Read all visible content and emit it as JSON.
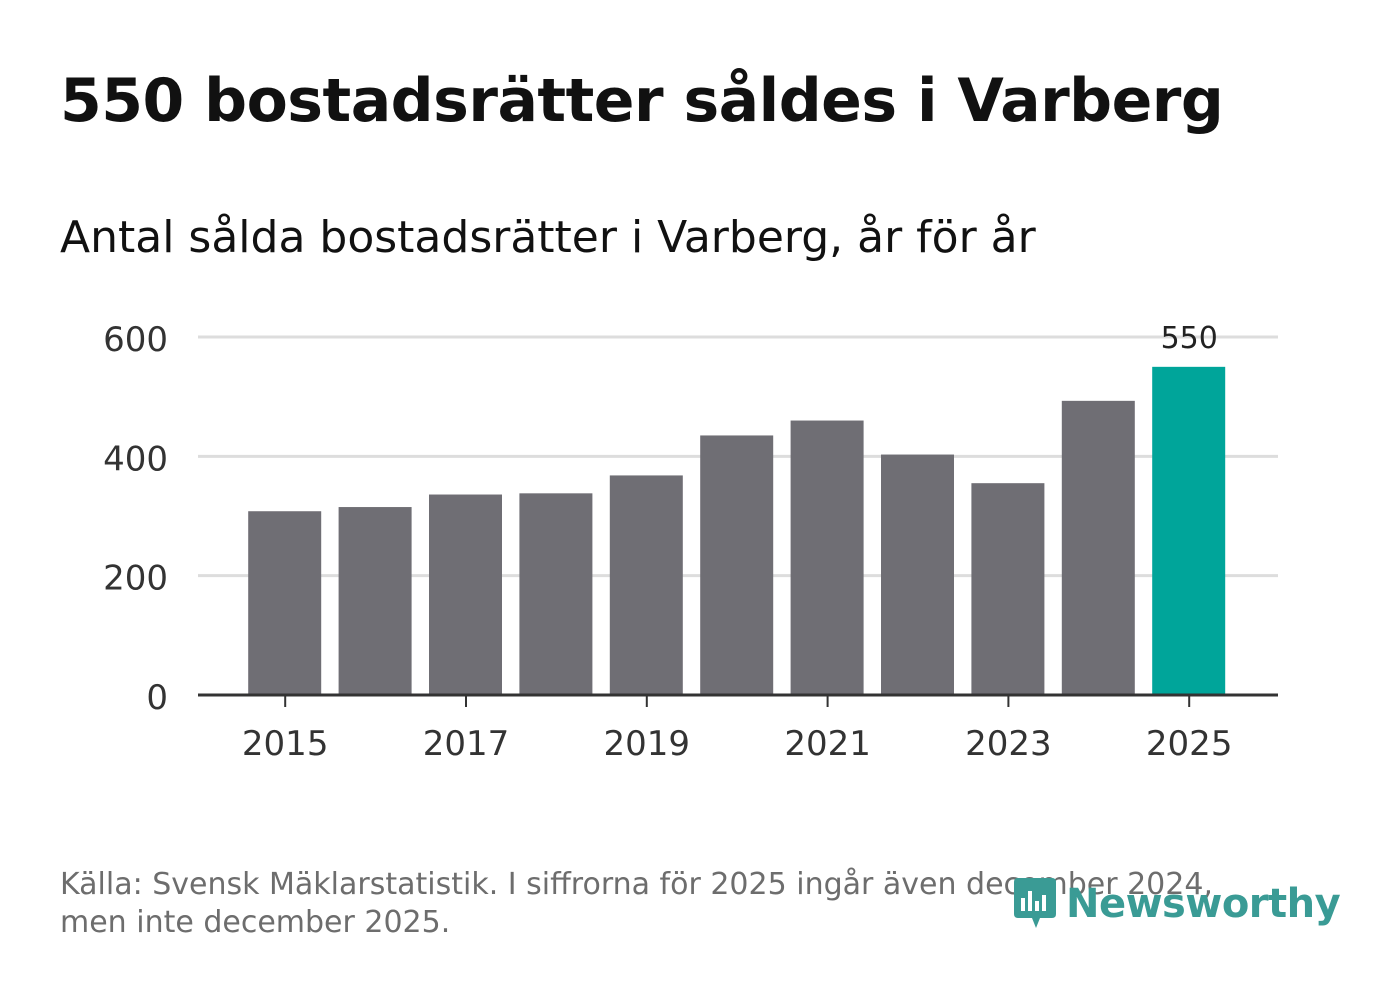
{
  "title": "550 bostadsrätter såldes i Varberg",
  "subtitle": "Antal sålda bostadsrätter i Varberg, år för år",
  "source": "Källa: Svensk Mäklarstatistik. I siffrorna för 2025 ingår även december 2024, men inte december 2025.",
  "logo": {
    "text": "Newsworthy",
    "color": "#3a9b95"
  },
  "colors": {
    "bar": "#6f6e74",
    "highlight": "#00a59a",
    "grid": "#dddddd",
    "axis": "#333333"
  },
  "chart_data": {
    "type": "bar",
    "title": "Antal sålda bostadsrätter i Varberg, år för år",
    "xlabel": "",
    "ylabel": "",
    "categories": [
      2015,
      2016,
      2017,
      2018,
      2019,
      2020,
      2021,
      2022,
      2023,
      2024,
      2025
    ],
    "values": [
      308,
      315,
      336,
      338,
      368,
      435,
      460,
      403,
      355,
      493,
      550
    ],
    "highlight_index": 10,
    "highlight_label": "550",
    "ylim": [
      0,
      600
    ],
    "yticks": [
      0,
      200,
      400,
      600
    ],
    "xticks": [
      "2015",
      "2017",
      "2019",
      "2021",
      "2023",
      "2025"
    ],
    "grid": true
  }
}
